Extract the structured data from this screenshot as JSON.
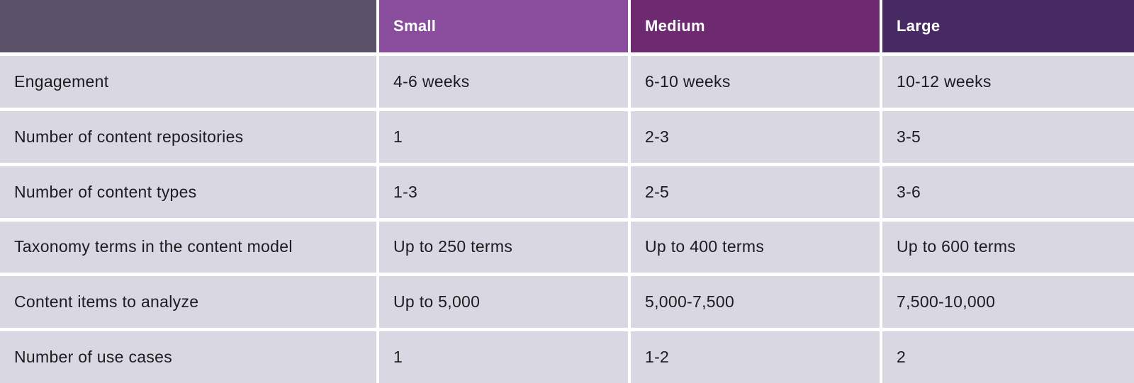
{
  "header": {
    "corner_label": "",
    "columns": [
      {
        "label": "Small"
      },
      {
        "label": "Medium"
      },
      {
        "label": "Large"
      }
    ]
  },
  "rows": [
    {
      "label": "Engagement",
      "values": [
        "4-6 weeks",
        "6-10 weeks",
        "10-12 weeks"
      ]
    },
    {
      "label": "Number of content repositories",
      "values": [
        "1",
        "2-3",
        "3-5"
      ]
    },
    {
      "label": "Number of content types",
      "values": [
        "1-3",
        "2-5",
        "3-6"
      ]
    },
    {
      "label": "Taxonomy terms in the content model",
      "values": [
        "Up to 250 terms",
        "Up to 400 terms",
        "Up to 600 terms"
      ]
    },
    {
      "label": "Content items to analyze",
      "values": [
        "Up to 5,000",
        "5,000-7,500",
        "7,500-10,000"
      ]
    },
    {
      "label": "Number of use cases",
      "values": [
        "1",
        "1-2",
        "2"
      ]
    }
  ],
  "colors": {
    "corner_header_bg": "#5b5269",
    "small_header_bg": "#8a4d9e",
    "medium_header_bg": "#6e2a70",
    "large_header_bg": "#472963",
    "body_cell_bg": "#d9d7e1",
    "header_text": "#ffffff",
    "body_text": "#1c1c1e",
    "grid_gap": "#ffffff"
  },
  "chart_data": {
    "type": "table",
    "columns": [
      "",
      "Small",
      "Medium",
      "Large"
    ],
    "rows": [
      [
        "Engagement",
        "4-6 weeks",
        "6-10 weeks",
        "10-12 weeks"
      ],
      [
        "Number of content repositories",
        "1",
        "2-3",
        "3-5"
      ],
      [
        "Number of content types",
        "1-3",
        "2-5",
        "3-6"
      ],
      [
        "Taxonomy terms in the content model",
        "Up to 250 terms",
        "Up to 400 terms",
        "Up to 600 terms"
      ],
      [
        "Content items to analyze",
        "Up to 5,000",
        "5,000-7,500",
        "7,500-10,000"
      ],
      [
        "Number of use cases",
        "1",
        "1-2",
        "2"
      ]
    ],
    "title": "",
    "legend": false,
    "grid": false
  }
}
